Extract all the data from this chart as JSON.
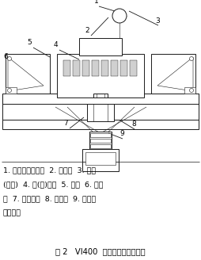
{
  "title_caption": "图 2   VI400  立式破碎机结构简图",
  "description_lines": [
    "1. 进料带式输送机  2. 给料器  3. 叶轮",
    "(转子)  4. 圆(方)铁砧  5. 电机  6. 电机",
    "座  7. 三角带轮  8. 主轴箱  9. 出料带",
    "式输送机"
  ],
  "bg_color": "#ffffff",
  "line_color": "#1a1a1a",
  "font_size_desc": 6.8,
  "font_size_caption": 7.2,
  "fig_width": 2.54,
  "fig_height": 3.28,
  "dpi": 100
}
